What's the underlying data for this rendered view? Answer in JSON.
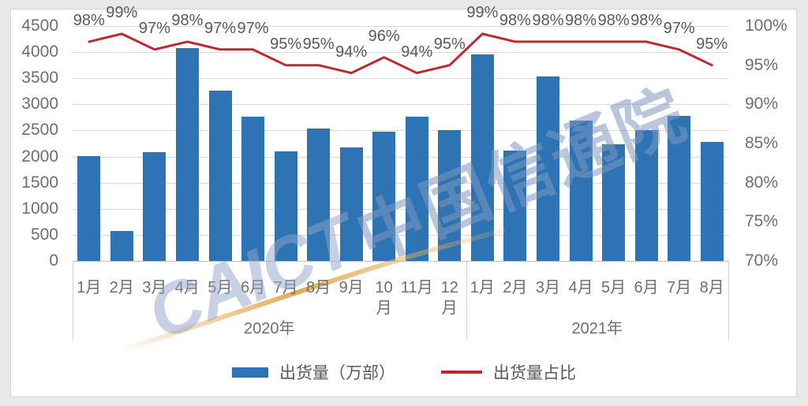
{
  "chart_data": {
    "type": "bar+line",
    "groups": [
      {
        "year": "2020年",
        "months": [
          "1月",
          "2月",
          "3月",
          "4月",
          "5月",
          "6月",
          "7月",
          "8月",
          "9月",
          "10月",
          "11月",
          "12月"
        ]
      },
      {
        "year": "2021年",
        "months": [
          "1月",
          "2月",
          "3月",
          "4月",
          "5月",
          "6月",
          "7月",
          "8月"
        ]
      }
    ],
    "series": [
      {
        "name": "出货量（万部）",
        "type": "bar",
        "color": "#2E74B5",
        "axis": "left",
        "values": [
          2010,
          580,
          2080,
          4080,
          3260,
          2760,
          2100,
          2540,
          2180,
          2480,
          2760,
          2510,
          3950,
          2110,
          3530,
          2690,
          2230,
          2500,
          2780,
          2280
        ]
      },
      {
        "name": "出货量占比",
        "type": "line",
        "color": "#C0282F",
        "axis": "right",
        "values": [
          98,
          99,
          97,
          98,
          97,
          97,
          95,
          95,
          94,
          96,
          94,
          95,
          99,
          98,
          98,
          98,
          98,
          98,
          97,
          95
        ],
        "labels": [
          "98%",
          "99%",
          "97%",
          "98%",
          "97%",
          "97%",
          "95%",
          "95%",
          "94%",
          "96%",
          "94%",
          "95%",
          "99%",
          "98%",
          "98%",
          "98%",
          "98%",
          "98%",
          "97%",
          "95%"
        ]
      }
    ],
    "left_axis": {
      "min": 0,
      "max": 4500,
      "step": 500,
      "ticks": [
        "4500",
        "4000",
        "3500",
        "3000",
        "2500",
        "2000",
        "1500",
        "1000",
        "500",
        "0"
      ]
    },
    "right_axis": {
      "min": 70,
      "max": 100,
      "step": 5,
      "ticks": [
        "100%",
        "95%",
        "90%",
        "85%",
        "80%",
        "75%",
        "70%"
      ]
    },
    "grid": true,
    "legend_position": "bottom"
  },
  "legend": {
    "bar_label": "出货量（万部）",
    "line_label": "出货量占比"
  },
  "watermark": {
    "text_latin": "CAICT",
    "text_cjk": "中国信通院"
  }
}
